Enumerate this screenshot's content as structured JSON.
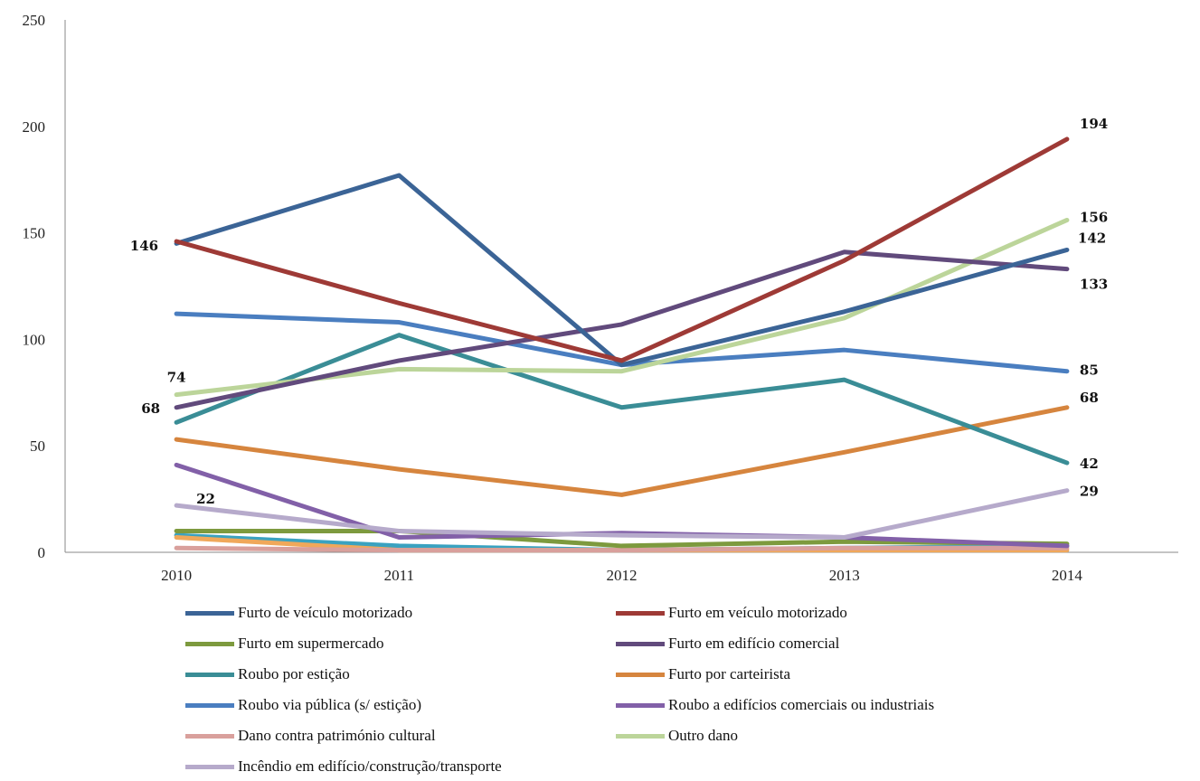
{
  "chart_data": {
    "type": "line",
    "title": "",
    "xlabel": "",
    "ylabel": "",
    "categories": [
      "2010",
      "2011",
      "2012",
      "2013",
      "2014"
    ],
    "ylim": [
      0,
      250
    ],
    "yticks": [
      "0",
      "50",
      "100",
      "150",
      "200",
      "250"
    ],
    "grid": false,
    "legend_position": "bottom",
    "series": [
      {
        "name": "Furto de veículo motorizado",
        "color": "#3b6496",
        "values": [
          145,
          177,
          88,
          113,
          142
        ],
        "labels": [
          "",
          "",
          "",
          "",
          "142"
        ]
      },
      {
        "name": "Furto em veículo motorizado",
        "color": "#9e3a36",
        "values": [
          146,
          117,
          90,
          137,
          194
        ],
        "labels": [
          "146",
          "",
          "",
          "",
          "194"
        ]
      },
      {
        "name": "Furto em supermercado",
        "color": "#7d9a3e",
        "values": [
          10,
          10,
          3,
          5,
          4
        ],
        "labels": [
          "",
          "",
          "",
          "",
          ""
        ]
      },
      {
        "name": "Furto em edifício comercial",
        "color": "#614a7c",
        "values": [
          68,
          90,
          107,
          141,
          133
        ],
        "labels": [
          "68",
          "",
          "",
          "",
          "133"
        ]
      },
      {
        "name": "Roubo por estição",
        "color": "#3a8d96",
        "values": [
          61,
          102,
          68,
          81,
          42
        ],
        "labels": [
          "",
          "",
          "",
          "",
          "42"
        ]
      },
      {
        "name": "Furto por carteirista",
        "color": "#d6853e",
        "values": [
          53,
          39,
          27,
          47,
          68
        ],
        "labels": [
          "",
          "",
          "",
          "",
          "68"
        ]
      },
      {
        "name": "Roubo via pública (s/ estição)",
        "color": "#4a7ec0",
        "values": [
          112,
          108,
          88,
          95,
          85
        ],
        "labels": [
          "",
          "",
          "",
          "",
          "85"
        ]
      },
      {
        "name": "Roubo a edifícios comerciais ou industriais",
        "color": "#8260a8",
        "values": [
          41,
          7,
          9,
          7,
          3
        ],
        "labels": [
          "",
          "",
          "",
          "",
          ""
        ]
      },
      {
        "name": "Dano contra património cultural",
        "color": "#d9a09c",
        "values": [
          2,
          1,
          1,
          2,
          2
        ],
        "labels": [
          "",
          "",
          "",
          "",
          ""
        ]
      },
      {
        "name": "Outro dano",
        "color": "#bcd59a",
        "values": [
          74,
          86,
          85,
          110,
          156
        ],
        "labels": [
          "74",
          "",
          "",
          "",
          "156"
        ]
      },
      {
        "name": "Incêndio em edifício/construção/transporte",
        "color": "#b6aacb",
        "values": [
          22,
          10,
          8,
          7,
          29
        ],
        "labels": [
          "22",
          "",
          "",
          "",
          "29"
        ]
      }
    ],
    "extra_small_series_values": [
      {
        "color": "#3aa2c0",
        "values": [
          8,
          3,
          1,
          2,
          3
        ]
      },
      {
        "color": "#f0a85a",
        "values": [
          7,
          1,
          1,
          1,
          1
        ]
      }
    ]
  }
}
